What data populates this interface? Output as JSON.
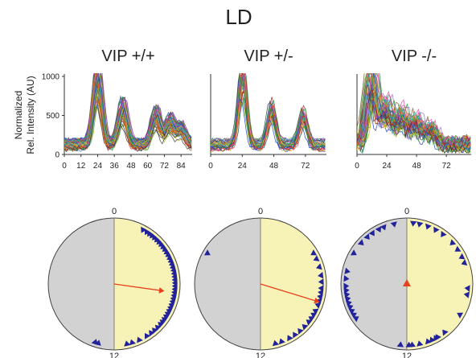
{
  "figure_title": "LD",
  "ylabel_lines": [
    "Normalized",
    "Rel. Intensity (AU)"
  ],
  "colors": {
    "day_fill": "#f7f3b6",
    "night_fill": "#d2d2d2",
    "phase_marker": "#22239a",
    "mean_vector": "#e8401e"
  },
  "chart_data": [
    {
      "type": "line",
      "title": "VIP +/+",
      "ylim": [
        0,
        1000
      ],
      "yticks": [
        0,
        500,
        1000
      ],
      "xlim": [
        0,
        92
      ],
      "xticks": [
        0,
        12,
        24,
        36,
        48,
        60,
        72,
        84
      ],
      "grid": false,
      "cell_traces": 60,
      "peak_times": [
        24,
        42,
        66,
        76,
        84
      ]
    },
    {
      "type": "line",
      "title": "VIP +/-",
      "ylim": [
        0,
        1000
      ],
      "xlim": [
        0,
        88
      ],
      "xticks": [
        0,
        24,
        48,
        72
      ],
      "grid": false,
      "cell_traces": 35,
      "peak_times": [
        24,
        46,
        70
      ]
    },
    {
      "type": "line",
      "title": "VIP -/-",
      "ylim": [
        0,
        1000
      ],
      "xlim": [
        0,
        92
      ],
      "xticks": [
        0,
        24,
        48,
        72
      ],
      "grid": false,
      "cell_traces": 45,
      "peak_times": [
        12,
        24,
        36,
        48,
        60
      ]
    },
    {
      "type": "scatter",
      "subtype": "polar-rayleigh",
      "genotype": "VIP +/+",
      "top_label": "0",
      "bottom_label": "12",
      "marker_angles_deg": [
        28,
        32,
        35,
        38,
        41,
        44,
        47,
        50,
        53,
        56,
        59,
        62,
        65,
        68,
        71,
        74,
        77,
        80,
        83,
        86,
        89,
        92,
        95,
        98,
        101,
        104,
        107,
        110,
        113,
        116,
        119,
        122,
        125,
        128,
        131,
        135,
        139,
        143,
        148,
        156,
        163,
        168,
        195,
        198
      ],
      "mean_vector": {
        "angle_deg": 98,
        "length": 0.73
      }
    },
    {
      "type": "scatter",
      "subtype": "polar-rayleigh",
      "genotype": "VIP +/-",
      "top_label": "0",
      "bottom_label": "12",
      "marker_angles_deg": [
        300,
        60,
        66,
        74,
        82,
        88,
        94,
        98,
        102,
        106,
        110,
        116,
        120,
        124,
        128,
        134,
        140,
        146,
        152,
        160,
        166
      ],
      "mean_vector": {
        "angle_deg": 107,
        "length": 0.9
      }
    },
    {
      "type": "scatter",
      "subtype": "polar-rayleigh",
      "genotype": "VIP -/-",
      "top_label": "0",
      "bottom_label": "12",
      "marker_angles_deg": [
        6,
        12,
        20,
        28,
        36,
        48,
        56,
        64,
        70,
        94,
        100,
        120,
        142,
        150,
        152,
        156,
        160,
        168,
        175,
        178,
        186,
        236,
        240,
        244,
        248,
        252,
        256,
        260,
        264,
        268,
        275,
        282,
        300,
        312,
        320,
        326,
        333,
        338,
        348
      ],
      "mean_vector": {
        "angle_deg": 90,
        "length": 0.02
      }
    }
  ]
}
